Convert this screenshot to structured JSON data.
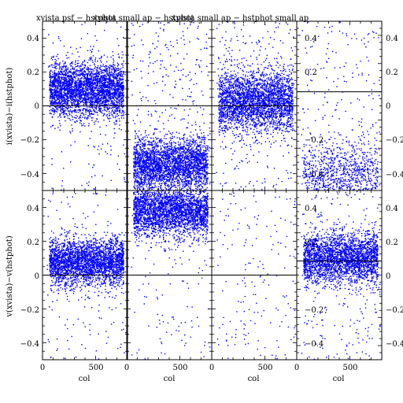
{
  "chart_data": {
    "type": "scatter",
    "grid": false,
    "xlabel": "col",
    "x_tick_labels": [
      "0",
      "500",
      "0",
      "500",
      "0",
      "500",
      "0",
      "500"
    ],
    "left_y_tick_labels": [
      "0.4",
      "0.2",
      "0",
      "−0.2",
      "−0.4",
      "0.4",
      "0.2",
      "0",
      "−0.2",
      "−0.4"
    ],
    "right_y_tick_labels": [
      "0.4",
      "0.2",
      "0",
      "−0.2",
      "−0.4",
      "0.4",
      "0.2",
      "0",
      "−0.2",
      "−0.4"
    ],
    "inner_y_tick_labels": [
      "0.4",
      "0.2",
      "−0.2",
      "−0.4",
      "0.4",
      "0.2",
      "−0.2",
      "−0.4"
    ],
    "titles": [
      "xvista psf − hstphot",
      "xvista small ap − hstphot",
      "xvista small ap − hstphot small ap"
    ],
    "marker_color": "#0000ff",
    "panels": [
      {
        "row": 0,
        "col": 0,
        "ylabel": "i(xvista)−i(hstphot)",
        "xlim": [
          0,
          800
        ],
        "ylim": [
          -0.5,
          0.5
        ],
        "center": 0.1,
        "spread": 0.08,
        "reference_line": 0,
        "density": 3200,
        "sparse": 120
      },
      {
        "row": 0,
        "col": 1,
        "xlim": [
          0,
          800
        ],
        "ylim": [
          -0.5,
          0.5
        ],
        "center": -0.35,
        "spread": 0.08,
        "reference_line": 0,
        "density": 2800,
        "sparse": 300
      },
      {
        "row": 0,
        "col": 2,
        "xlim": [
          0,
          800
        ],
        "ylim": [
          -0.5,
          0.5
        ],
        "center": 0.03,
        "spread": 0.09,
        "reference_line": 0,
        "density": 2800,
        "sparse": 250
      },
      {
        "row": 0,
        "col": 3,
        "xlim": [
          0,
          800
        ],
        "ylim": [
          -0.7,
          0.5
        ],
        "center": -0.58,
        "spread": 0.12,
        "reference_line": 0,
        "density": 900,
        "sparse": 200
      },
      {
        "row": 1,
        "col": 0,
        "ylabel": "v(xvista)−v(hstphot)",
        "xlim": [
          0,
          800
        ],
        "ylim": [
          -0.5,
          0.5
        ],
        "center": 0.08,
        "spread": 0.07,
        "reference_line": 0,
        "density": 2800,
        "sparse": 150
      },
      {
        "row": 1,
        "col": 1,
        "xlim": [
          0,
          800
        ],
        "ylim": [
          -0.5,
          0.5
        ],
        "center": 0.38,
        "spread": 0.08,
        "reference_line": 0,
        "density": 2800,
        "sparse": 150
      },
      {
        "row": 1,
        "col": 2,
        "xlim": [
          0,
          800
        ],
        "ylim": [
          -0.5,
          0.5
        ],
        "center": 0.35,
        "spread": 0.1,
        "reference_line": 0,
        "density": 0,
        "sparse": 160
      },
      {
        "row": 1,
        "col": 3,
        "xlim": [
          0,
          800
        ],
        "ylim": [
          -0.7,
          0.5
        ],
        "center": 0.02,
        "spread": 0.09,
        "reference_line": 0,
        "density": 2600,
        "sparse": 250
      }
    ]
  }
}
